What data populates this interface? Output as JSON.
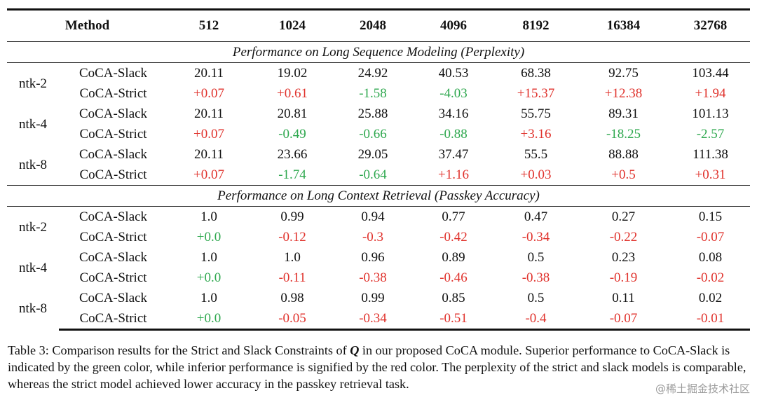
{
  "table": {
    "header": {
      "method_label": "Method",
      "columns": [
        "512",
        "1024",
        "2048",
        "4096",
        "8192",
        "16384",
        "32768"
      ]
    },
    "sections": [
      {
        "title": "Performance on Long Sequence Modeling (Perplexity)",
        "groups": [
          {
            "name": "ntk-2",
            "slack": {
              "label": "CoCA-Slack",
              "values": [
                "20.11",
                "19.02",
                "24.92",
                "40.53",
                "68.38",
                "92.75",
                "103.44"
              ]
            },
            "strict": {
              "label": "CoCA-Strict",
              "values": [
                "+0.07",
                "+0.61",
                "-1.58",
                "-4.03",
                "+15.37",
                "+12.38",
                "+1.94"
              ]
            }
          },
          {
            "name": "ntk-4",
            "slack": {
              "label": "CoCA-Slack",
              "values": [
                "20.11",
                "20.81",
                "25.88",
                "34.16",
                "55.75",
                "89.31",
                "101.13"
              ]
            },
            "strict": {
              "label": "CoCA-Strict",
              "values": [
                "+0.07",
                "-0.49",
                "-0.66",
                "-0.88",
                "+3.16",
                "-18.25",
                "-2.57"
              ]
            }
          },
          {
            "name": "ntk-8",
            "slack": {
              "label": "CoCA-Slack",
              "values": [
                "20.11",
                "23.66",
                "29.05",
                "37.47",
                "55.5",
                "88.88",
                "111.38"
              ]
            },
            "strict": {
              "label": "CoCA-Strict",
              "values": [
                "+0.07",
                "-1.74",
                "-0.64",
                "+1.16",
                "+0.03",
                "+0.5",
                "+0.31"
              ]
            }
          }
        ]
      },
      {
        "title": "Performance on Long Context Retrieval (Passkey Accuracy)",
        "groups": [
          {
            "name": "ntk-2",
            "slack": {
              "label": "CoCA-Slack",
              "values": [
                "1.0",
                "0.99",
                "0.94",
                "0.77",
                "0.47",
                "0.27",
                "0.15"
              ]
            },
            "strict": {
              "label": "CoCA-Strict",
              "values": [
                "+0.0",
                "-0.12",
                "-0.3",
                "-0.42",
                "-0.34",
                "-0.22",
                "-0.07"
              ]
            }
          },
          {
            "name": "ntk-4",
            "slack": {
              "label": "CoCA-Slack",
              "values": [
                "1.0",
                "1.0",
                "0.96",
                "0.89",
                "0.5",
                "0.23",
                "0.08"
              ]
            },
            "strict": {
              "label": "CoCA-Strict",
              "values": [
                "+0.0",
                "-0.11",
                "-0.38",
                "-0.46",
                "-0.38",
                "-0.19",
                "-0.02"
              ]
            }
          },
          {
            "name": "ntk-8",
            "slack": {
              "label": "CoCA-Slack",
              "values": [
                "1.0",
                "0.98",
                "0.99",
                "0.85",
                "0.5",
                "0.11",
                "0.02"
              ]
            },
            "strict": {
              "label": "CoCA-Strict",
              "values": [
                "+0.0",
                "-0.05",
                "-0.34",
                "-0.51",
                "-0.4",
                "-0.07",
                "-0.01"
              ]
            }
          }
        ]
      }
    ]
  },
  "caption": {
    "prefix": "Table 3: Comparison results for the Strict and Slack Constraints of ",
    "symbol": "Q",
    "suffix": " in our proposed CoCA module. Superior performance to CoCA-Slack is indicated by the green color, while inferior performance is signified by the red color. The perplexity of the strict and slack models is comparable, whereas the strict model achieved lower accuracy in the passkey retrieval task."
  },
  "watermark": "@稀土掘金技术社区",
  "colors": {
    "inferior": "#e0322c",
    "superior": "#2fa84f",
    "text": "#111111"
  },
  "color_rule": {
    "Performance on Long Sequence Modeling (Perplexity)": "lower is better: + is red, - is green",
    "Performance on Long Context Retrieval (Passkey Accuracy)": "higher is better: - is red, +0.0 is green"
  }
}
